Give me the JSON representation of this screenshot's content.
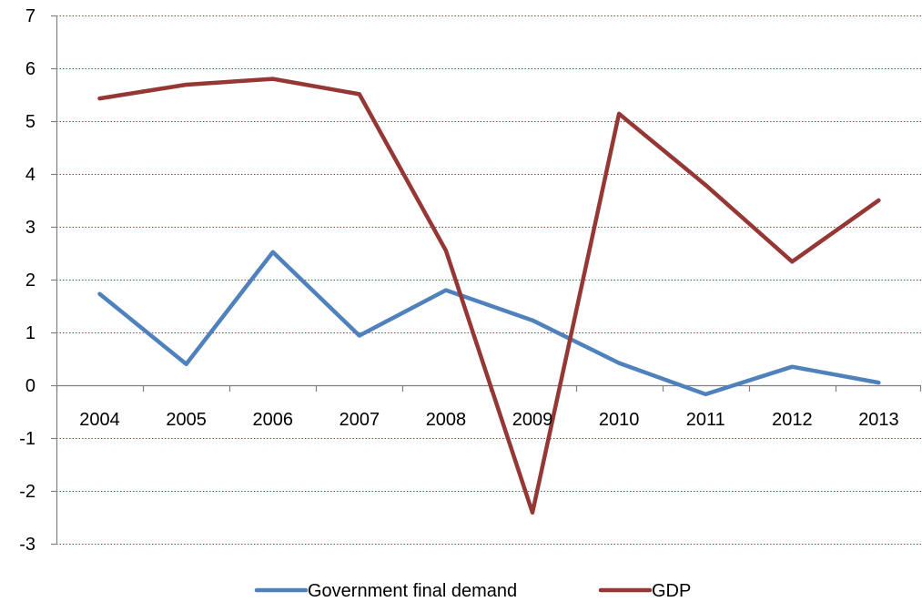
{
  "chart_data": {
    "type": "line",
    "title": "",
    "xlabel": "",
    "ylabel": "",
    "categories": [
      "2004",
      "2005",
      "2006",
      "2007",
      "2008",
      "2009",
      "2010",
      "2011",
      "2012",
      "2013"
    ],
    "ylim": [
      -3,
      7
    ],
    "yticks": [
      -3,
      -2,
      -1,
      0,
      1,
      2,
      3,
      4,
      5,
      6,
      7
    ],
    "grid": "horizontal dotted",
    "legend_position": "bottom",
    "series": [
      {
        "name": "Government final demand",
        "color": "#4F81BD",
        "values": [
          1.73,
          0.4,
          2.52,
          0.94,
          1.8,
          1.23,
          0.42,
          -0.17,
          0.35,
          0.05
        ]
      },
      {
        "name": "GDP",
        "color": "#953735",
        "values": [
          5.43,
          5.69,
          5.8,
          5.51,
          2.55,
          -2.41,
          5.14,
          3.79,
          2.34,
          3.5
        ]
      }
    ]
  }
}
